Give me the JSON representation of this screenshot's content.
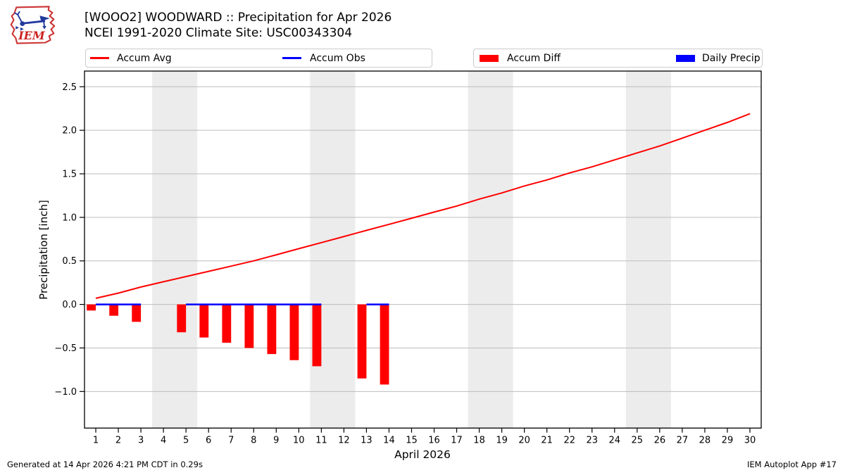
{
  "header": {
    "title": "[WOOO2] WOODWARD :: Precipitation for Apr 2026",
    "subtitle": "NCEI 1991-2020 Climate Site: USC00343304"
  },
  "footer": {
    "generated": "Generated at 14 Apr 2026 4:21 PM CDT in 0.29s",
    "app": "IEM Autoplot App #17"
  },
  "logo": {
    "text": "IEM"
  },
  "colors": {
    "accum_avg": "#ff0000",
    "accum_obs": "#0000ff",
    "accum_diff": "#ff0000",
    "daily_precip": "#0000ff",
    "weekend_band": "#ececec",
    "gridline": "#bdbdbd",
    "axis": "#000000",
    "logo_red": "#cc2222",
    "logo_blue": "#223a9e"
  },
  "chart_data": {
    "type": "line+bar",
    "title": "[WOOO2] WOODWARD :: Precipitation for Apr 2026",
    "subtitle": "NCEI 1991-2020 Climate Site: USC00343304",
    "xlabel": "April 2026",
    "ylabel": "Precipitation [inch]",
    "xlim": [
      0.5,
      30.5
    ],
    "ylim": [
      -1.42,
      2.68
    ],
    "grid": true,
    "yticks": [
      2.5,
      2.0,
      1.5,
      1.0,
      0.5,
      0.0,
      -0.5,
      -1.0
    ],
    "xticks": [
      1,
      2,
      3,
      4,
      5,
      6,
      7,
      8,
      9,
      10,
      11,
      12,
      13,
      14,
      15,
      16,
      17,
      18,
      19,
      20,
      21,
      22,
      23,
      24,
      25,
      26,
      27,
      28,
      29,
      30
    ],
    "band_color": "#ececec",
    "grid_color": "#bdbdbd",
    "weekend_bands_x": [
      [
        3.5,
        5.5
      ],
      [
        10.5,
        12.5
      ],
      [
        17.5,
        19.5
      ],
      [
        24.5,
        26.5
      ]
    ],
    "legend_position": "top",
    "series": [
      {
        "name": "Accum Avg",
        "type": "line",
        "color": "#ff0000",
        "linewidth": 2,
        "x": [
          1,
          2,
          3,
          4,
          5,
          6,
          7,
          8,
          9,
          10,
          11,
          12,
          13,
          14,
          15,
          16,
          17,
          18,
          19,
          20,
          21,
          22,
          23,
          24,
          25,
          26,
          27,
          28,
          29,
          30
        ],
        "y": [
          0.07,
          0.13,
          0.2,
          0.26,
          0.32,
          0.38,
          0.44,
          0.5,
          0.57,
          0.64,
          0.71,
          0.78,
          0.85,
          0.92,
          0.99,
          1.06,
          1.13,
          1.21,
          1.28,
          1.36,
          1.43,
          1.51,
          1.58,
          1.66,
          1.74,
          1.82,
          1.91,
          2.0,
          2.09,
          2.19
        ]
      },
      {
        "name": "Accum Obs",
        "type": "line",
        "color": "#0000ff",
        "linewidth": 2.5,
        "segments": [
          {
            "x": [
              1,
              2,
              3
            ],
            "y": [
              0,
              0,
              0
            ]
          },
          {
            "x": [
              5,
              6,
              7,
              8,
              9,
              10,
              11
            ],
            "y": [
              0,
              0,
              0,
              0,
              0,
              0,
              0
            ]
          },
          {
            "x": [
              13,
              14
            ],
            "y": [
              0,
              0
            ]
          }
        ]
      },
      {
        "name": "Accum Diff",
        "type": "bar",
        "color": "#ff0000",
        "bar_offset": -0.2,
        "bar_width": 0.4,
        "x": [
          1,
          2,
          3,
          5,
          6,
          7,
          8,
          9,
          10,
          11,
          13,
          14
        ],
        "y": [
          -0.07,
          -0.13,
          -0.2,
          -0.32,
          -0.38,
          -0.44,
          -0.5,
          -0.57,
          -0.64,
          -0.71,
          -0.85,
          -0.92
        ]
      },
      {
        "name": "Daily Precip",
        "type": "bar",
        "color": "#0000ff",
        "bar_offset": 0.2,
        "bar_width": 0.4,
        "x": [
          1,
          2,
          3,
          5,
          6,
          7,
          8,
          9,
          10,
          11,
          13,
          14
        ],
        "y": [
          0,
          0,
          0,
          0,
          0,
          0,
          0,
          0,
          0,
          0,
          0,
          0
        ]
      }
    ]
  }
}
